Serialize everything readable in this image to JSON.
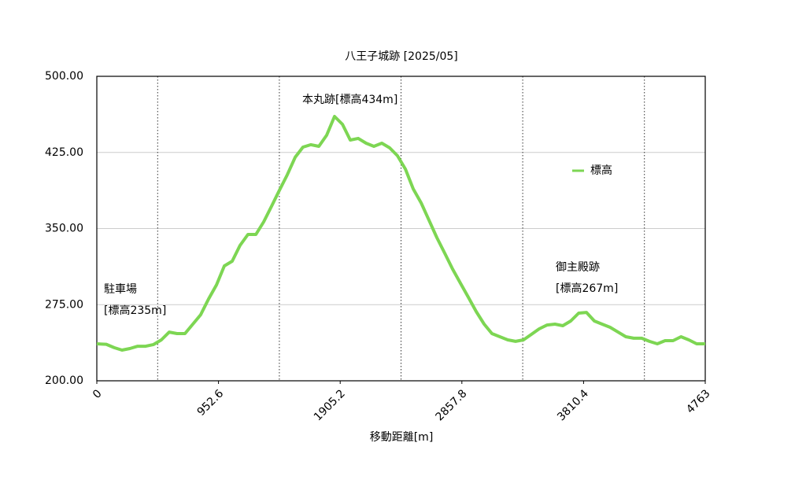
{
  "chart_data": {
    "type": "line",
    "title": "八王子城跡 [2025/05]",
    "x_label": "移動距離[m]",
    "x": [
      0,
      74,
      136,
      197,
      259,
      320,
      382,
      444,
      505,
      567,
      628,
      690,
      752,
      813,
      875,
      937,
      998,
      1060,
      1121,
      1183,
      1245,
      1306,
      1368,
      1429,
      1491,
      1553,
      1614,
      1676,
      1738,
      1799,
      1861,
      1923,
      1984,
      2046,
      2108,
      2169,
      2231,
      2292,
      2354,
      2416,
      2477,
      2539,
      2601,
      2662,
      2724,
      2785,
      2847,
      2909,
      2970,
      3032,
      3093,
      3155,
      3217,
      3278,
      3340,
      3402,
      3463,
      3525,
      3587,
      3648,
      3710,
      3772,
      3833,
      3895,
      3956,
      4018,
      4080,
      4141,
      4203,
      4265,
      4326,
      4388,
      4449,
      4511,
      4573,
      4634,
      4696,
      4763
    ],
    "series": [
      {
        "name": "標高",
        "color": "#7dd653",
        "values": [
          236.4,
          236,
          232.6,
          230.2,
          231.8,
          234,
          234,
          235.7,
          240.3,
          248,
          246.5,
          246.5,
          255.8,
          265,
          280.6,
          294.6,
          313.2,
          317.8,
          333.3,
          344.2,
          344.2,
          356.6,
          372,
          387.6,
          403,
          420.2,
          430.2,
          432.6,
          431,
          441.9,
          460.5,
          452.7,
          437.2,
          438.8,
          434.1,
          431,
          434.1,
          429.5,
          421.7,
          408.5,
          389.1,
          375.2,
          358.1,
          341.1,
          325.6,
          310.1,
          296.1,
          282.2,
          268.2,
          255.8,
          246.5,
          243.4,
          240.3,
          238.8,
          240.3,
          245.7,
          251.2,
          255,
          255.8,
          254.3,
          258.9,
          266.7,
          267.4,
          258.9,
          255.8,
          252.7,
          248,
          243.4,
          241.9,
          241.9,
          238.8,
          236.4,
          239.5,
          239.5,
          243.4,
          240.3,
          236.4,
          236.4
        ]
      }
    ],
    "xlim": [
      0,
      4763
    ],
    "xticks": [
      0,
      952.6,
      1905.2,
      2857.8,
      3810.4,
      4763
    ],
    "x_dotted_lines": [
      476.3,
      1428.9,
      2381.5,
      3334.1,
      4286.7
    ],
    "ylim": [
      200,
      500
    ],
    "yticks": [
      {
        "value": 200,
        "label": "200.00"
      },
      {
        "value": 275,
        "label": "275.00"
      },
      {
        "value": 350,
        "label": "350.00"
      },
      {
        "value": 425,
        "label": "425.00"
      },
      {
        "value": 500,
        "label": "500.00"
      }
    ],
    "grid": true,
    "legend": "upper right",
    "annotations": [
      "駐車場",
      "[標高235m]",
      "本丸跡[標高434m]",
      "御主殿跡",
      "[標高267m]"
    ]
  }
}
